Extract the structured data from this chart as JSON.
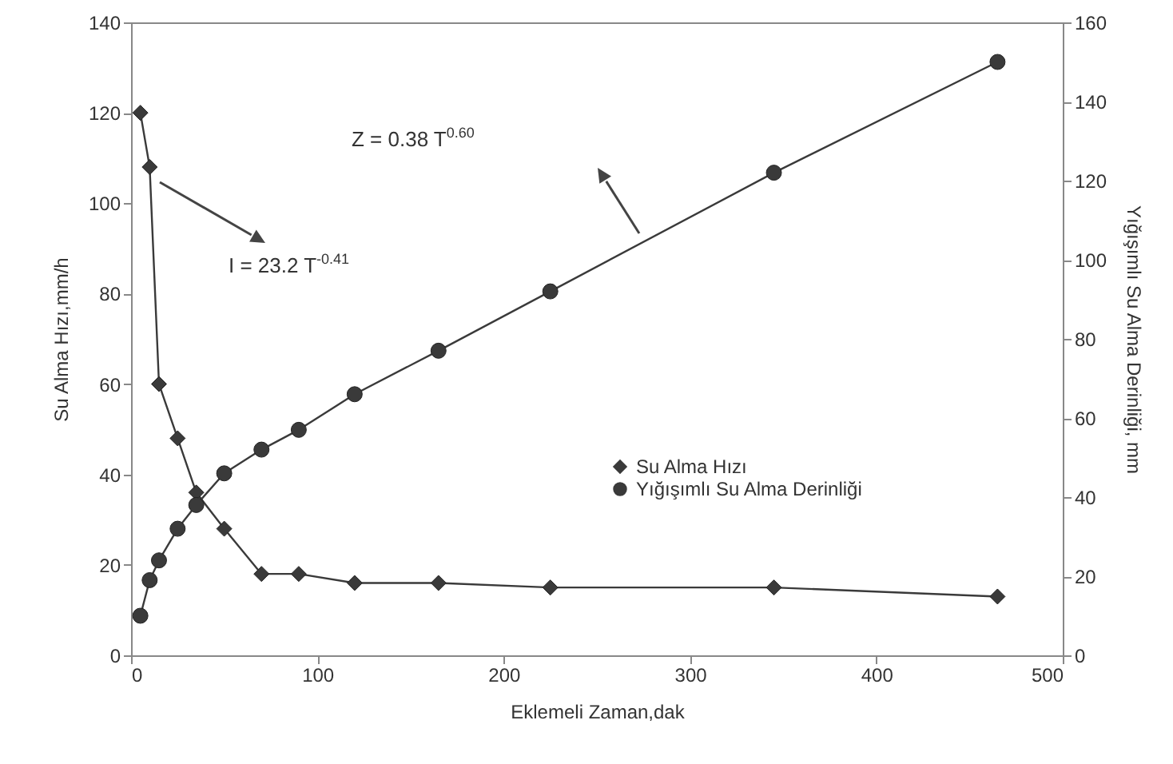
{
  "chart_data": {
    "type": "line",
    "xlabel": "Eklemeli Zaman,dak",
    "ylabel": "Su Alma Hızı,mm/h",
    "y2label": "Yığışımlı Su Alma Derinliği, mm",
    "x": [
      5,
      10,
      15,
      25,
      35,
      50,
      70,
      90,
      120,
      165,
      225,
      345,
      465
    ],
    "series": [
      {
        "name": "Su Alma Hızı",
        "color": "#3a3a3a",
        "marker": "diamond",
        "values": [
          120,
          108,
          60,
          48,
          36,
          28,
          18,
          18,
          16,
          16,
          15,
          15,
          13
        ]
      },
      {
        "name": "Yığışımlı Su  Alma Derinliği",
        "color": "#3a3a3a",
        "marker": "circle",
        "axis": "y2",
        "values": [
          10,
          19,
          24,
          32,
          38,
          46,
          52,
          57,
          66,
          77,
          92,
          122,
          150
        ]
      }
    ],
    "xlim": [
      0,
      500
    ],
    "xticks": [
      0,
      100,
      200,
      300,
      400,
      500
    ],
    "ylim": [
      0,
      140
    ],
    "yticks": [
      0,
      20,
      40,
      60,
      80,
      100,
      120,
      140
    ],
    "y2lim": [
      0,
      160
    ],
    "y2ticks": [
      0,
      20,
      40,
      60,
      80,
      100,
      120,
      140,
      160
    ],
    "legend": "right",
    "grid": false,
    "annotations": [
      "I = 23.2 T$^{-0.41}$",
      "Z = 0.38 T$^{0.60}$"
    ]
  }
}
